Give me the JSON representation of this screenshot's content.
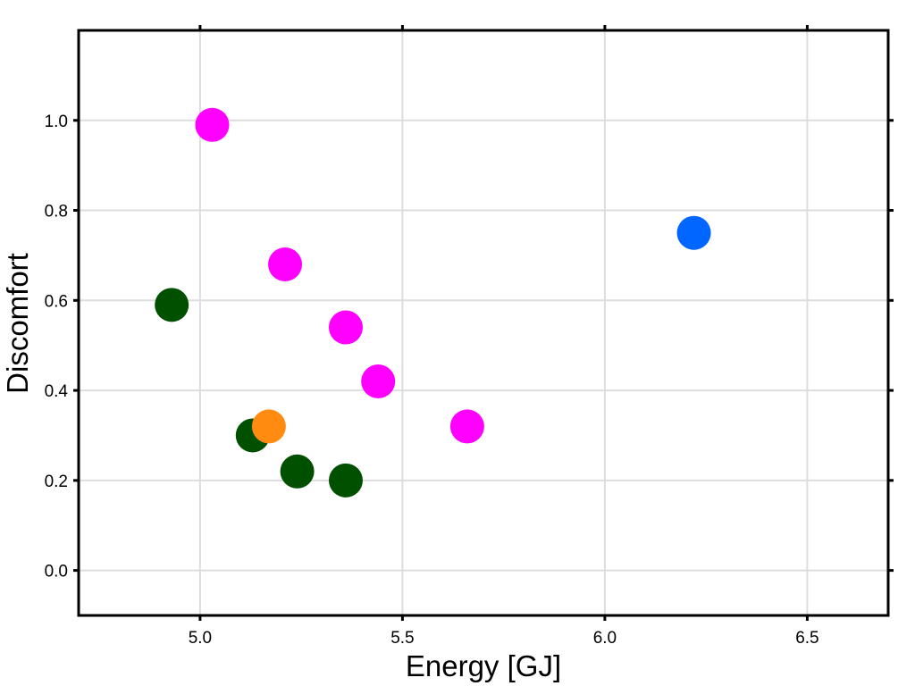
{
  "chart_data": {
    "type": "scatter",
    "title": "",
    "xlabel": "Energy [GJ]",
    "ylabel": "Discomfort",
    "xlim": [
      4.7,
      6.7
    ],
    "ylim": [
      -0.1,
      1.2
    ],
    "xticks": [
      5.0,
      5.5,
      6.0,
      6.5
    ],
    "xtick_labels": [
      "5.0",
      "5.5",
      "6.0",
      "6.5"
    ],
    "yticks": [
      0.0,
      0.2,
      0.4,
      0.6,
      0.8,
      1.0
    ],
    "ytick_labels": [
      "0.0",
      "0.2",
      "0.4",
      "0.6",
      "0.8",
      "1.0"
    ],
    "grid": true,
    "series": [
      {
        "color": "#005000",
        "points": [
          {
            "x": 4.93,
            "y": 0.59
          },
          {
            "x": 5.13,
            "y": 0.3
          },
          {
            "x": 5.24,
            "y": 0.22
          },
          {
            "x": 5.36,
            "y": 0.2
          }
        ]
      },
      {
        "color": "#FF8C10",
        "points": [
          {
            "x": 5.17,
            "y": 0.32
          }
        ]
      },
      {
        "color": "#FF00FF",
        "points": [
          {
            "x": 5.03,
            "y": 0.99
          },
          {
            "x": 5.21,
            "y": 0.68
          },
          {
            "x": 5.36,
            "y": 0.54
          },
          {
            "x": 5.44,
            "y": 0.42
          },
          {
            "x": 5.66,
            "y": 0.32
          }
        ]
      },
      {
        "color": "#0066FF",
        "points": [
          {
            "x": 6.22,
            "y": 0.75
          }
        ]
      }
    ]
  }
}
